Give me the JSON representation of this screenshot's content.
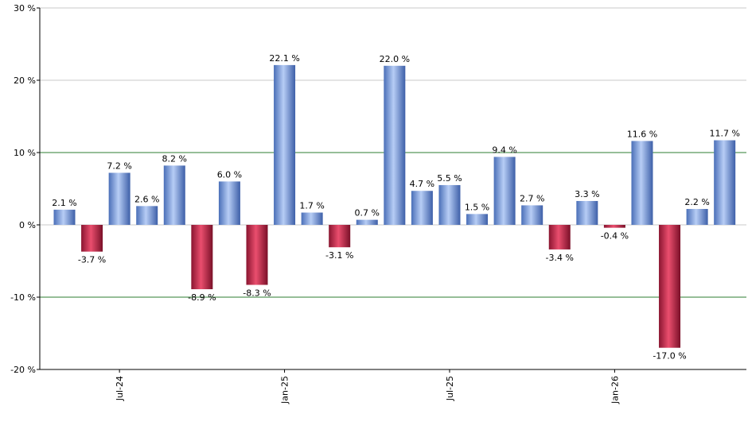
{
  "chart_data": {
    "type": "bar",
    "title": "",
    "xlabel": "",
    "ylabel": "",
    "ylim": [
      -20,
      30
    ],
    "yticks": [
      -20,
      -10,
      0,
      10,
      20,
      30
    ],
    "ytick_labels": [
      "-20 %",
      "-10 %",
      "0 %",
      "10 %",
      "20 %",
      "30 %"
    ],
    "y_reference_lines": [
      10,
      -10
    ],
    "grid": true,
    "legend": "none",
    "values": [
      2.1,
      -3.7,
      7.2,
      2.6,
      8.2,
      -8.9,
      6.0,
      -8.3,
      22.1,
      1.7,
      -3.1,
      0.7,
      22.0,
      4.7,
      5.5,
      1.5,
      9.4,
      2.7,
      -3.4,
      3.3,
      -0.4,
      11.6,
      -17.0,
      2.2,
      11.7
    ],
    "value_labels": [
      "2.1 %",
      "-3.7 %",
      "7.2 %",
      "2.6 %",
      "8.2 %",
      "-8.9 %",
      "6.0 %",
      "-8.3 %",
      "22.1 %",
      "1.7 %",
      "-3.1 %",
      "0.7 %",
      "22.0 %",
      "4.7 %",
      "5.5 %",
      "1.5 %",
      "9.4 %",
      "2.7 %",
      "-3.4 %",
      "3.3 %",
      "-0.4 %",
      "11.6 %",
      "-17.0 %",
      "2.2 %",
      "11.7 %"
    ],
    "x_tick_labels": [
      {
        "label": "Jul-24",
        "bar_index": 2
      },
      {
        "label": "Jan-25",
        "bar_index": 8
      },
      {
        "label": "Jul-25",
        "bar_index": 14
      },
      {
        "label": "Jan-26",
        "bar_index": 20
      }
    ],
    "colors": {
      "positive": "#7a9be0",
      "negative": "#c02848",
      "grid": "#c8c8c8",
      "reference": "#2e7d32",
      "axis": "#000000"
    }
  }
}
